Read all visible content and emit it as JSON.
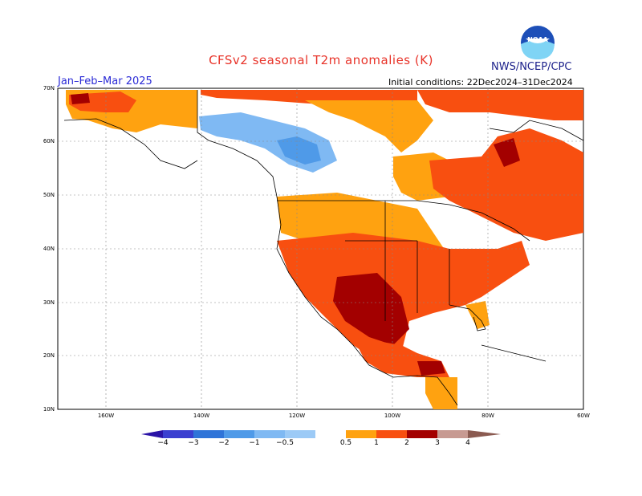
{
  "header": {
    "title": "CFSv2 seasonal T2m anomalies (K)",
    "agency": "NWS/NCEP/CPC",
    "period": "Jan–Feb–Mar 2025",
    "init": "Initial conditions: 22Dec2024–31Dec2024",
    "logo_text": "NOAA"
  },
  "lat_labels": [
    "70N",
    "60N",
    "50N",
    "40N",
    "30N",
    "20N",
    "10N"
  ],
  "lon_labels": [
    "160W",
    "140W",
    "120W",
    "100W",
    "80W",
    "60W"
  ],
  "colorbar": {
    "labels": [
      "−4",
      "−3",
      "−2",
      "−1",
      "−0.5",
      "0.5",
      "1",
      "2",
      "3",
      "4"
    ],
    "colors": [
      "#2a13a6",
      "#3b3fd0",
      "#2f74d8",
      "#4f9ae8",
      "#7fb9f3",
      "#ffffff",
      "#ffa210",
      "#f84f10",
      "#a30000",
      "#c79a92",
      "#8a5a50"
    ]
  },
  "colors": {
    "title": "#e8342a",
    "agency": "#1a1f8a",
    "period": "#2b2bd6"
  }
}
